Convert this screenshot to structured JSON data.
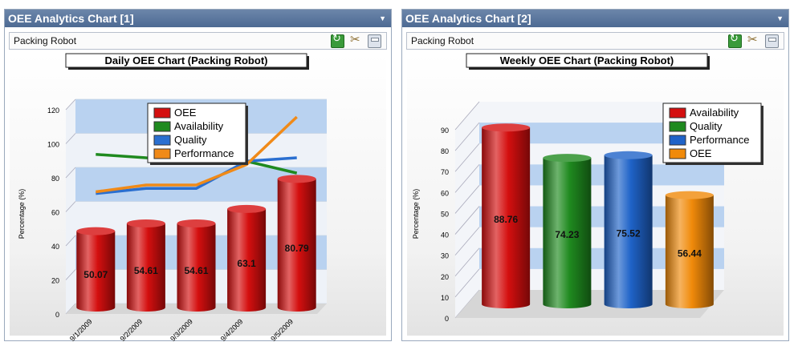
{
  "panels": [
    {
      "title": "OEE Analytics Chart [1]",
      "subtitle": "Packing Robot",
      "chart_data": {
        "type": "bar",
        "title": "Daily OEE Chart (Packing Robot)",
        "ylabel": "Percentage (%)",
        "xlabel": "",
        "categories": [
          "9/1/2009",
          "9/2/2009",
          "9/3/2009",
          "9/4/2009",
          "9/5/2009"
        ],
        "ylim": [
          0,
          120
        ],
        "yticks": [
          0,
          20,
          40,
          60,
          80,
          100,
          120
        ],
        "grid": true,
        "legend_position": "top-right",
        "legend": [
          "OEE",
          "Availability",
          "Quality",
          "Performance"
        ],
        "series": [
          {
            "name": "OEE",
            "kind": "bar",
            "color": "#d40f0f",
            "values": [
              50.07,
              54.61,
              54.61,
              63.1,
              80.79
            ],
            "labels": [
              "50.07",
              "54.61",
              "54.61",
              "63.1",
              "80.79"
            ]
          },
          {
            "name": "Availability",
            "kind": "line",
            "color": "#1f8a1f",
            "values": [
              90,
              88,
              87,
              86,
              79
            ]
          },
          {
            "name": "Quality",
            "kind": "line",
            "color": "#2a6fd0",
            "values": [
              67,
              70,
              70,
              86,
              88
            ]
          },
          {
            "name": "Performance",
            "kind": "line",
            "color": "#f08a18",
            "values": [
              68,
              72,
              72,
              84,
              112
            ]
          }
        ]
      }
    },
    {
      "title": "OEE Analytics Chart [2]",
      "subtitle": "Packing Robot",
      "chart_data": {
        "type": "bar",
        "title": "Weekly OEE Chart (Packing Robot)",
        "ylabel": "Percentage (%)",
        "xlabel": "",
        "categories": [
          "Availability",
          "Quality",
          "Performance",
          "OEE"
        ],
        "values": [
          88.76,
          74.23,
          75.52,
          56.44
        ],
        "labels": [
          "88.76",
          "74.23",
          "75.52",
          "56.44"
        ],
        "colors": [
          "#d40f0f",
          "#1f8a1f",
          "#1f63c8",
          "#f08a0a"
        ],
        "ylim": [
          0,
          90
        ],
        "yticks": [
          0,
          10,
          20,
          30,
          40,
          50,
          60,
          70,
          80,
          90
        ],
        "grid": true,
        "legend_position": "top-right",
        "legend": [
          "Availability",
          "Quality",
          "Performance",
          "OEE"
        ]
      }
    }
  ]
}
